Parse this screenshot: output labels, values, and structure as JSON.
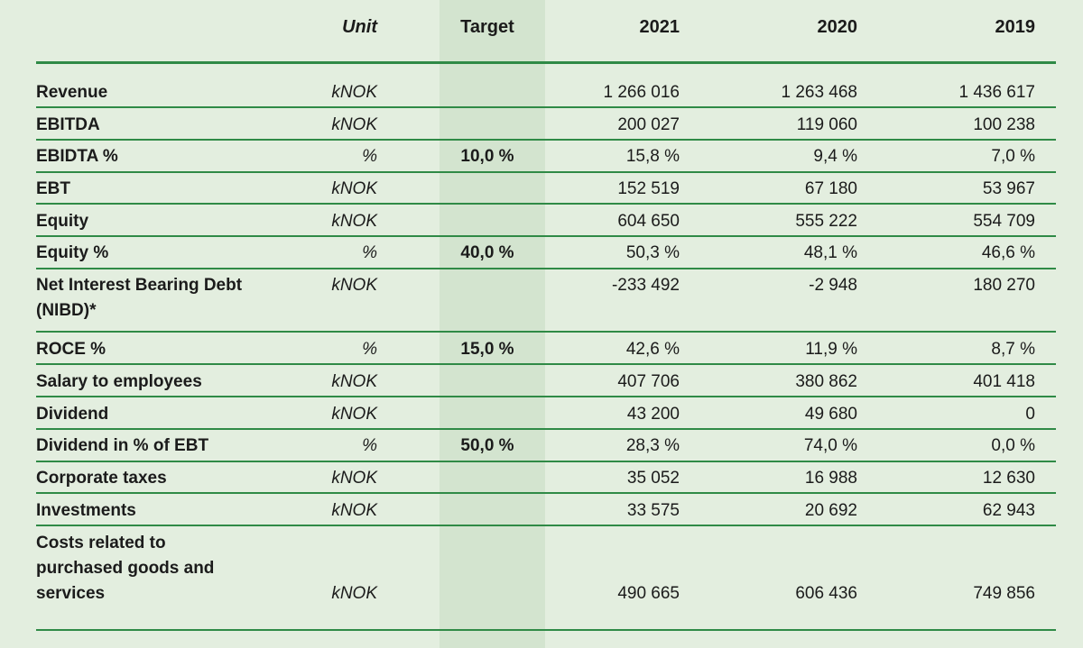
{
  "header": {
    "unit": "Unit",
    "target": "Target",
    "y2021": "2021",
    "y2020": "2020",
    "y2019": "2019"
  },
  "rows": [
    {
      "label": "Revenue",
      "unit": "kNOK",
      "target": "",
      "y2021": "1 266 016",
      "y2020": "1 263 468",
      "y2019": "1 436 617"
    },
    {
      "label": "EBITDA",
      "unit": "kNOK",
      "target": "",
      "y2021": "200 027",
      "y2020": "119 060",
      "y2019": "100 238"
    },
    {
      "label": "EBIDTA %",
      "unit": "%",
      "target": "10,0 %",
      "y2021": "15,8 %",
      "y2020": "9,4 %",
      "y2019": "7,0 %"
    },
    {
      "label": "EBT",
      "unit": "kNOK",
      "target": "",
      "y2021": "152 519",
      "y2020": "67 180",
      "y2019": "53 967"
    },
    {
      "label": "Equity",
      "unit": "kNOK",
      "target": "",
      "y2021": "604 650",
      "y2020": "555 222",
      "y2019": "554 709"
    },
    {
      "label": "Equity %",
      "unit": "%",
      "target": "40,0 %",
      "y2021": "50,3 %",
      "y2020": "48,1 %",
      "y2019": "46,6 %"
    },
    {
      "label": "Net Interest Bearing Debt (NIBD)*",
      "unit": "kNOK",
      "target": "",
      "y2021": "-233 492",
      "y2020": "-2 948",
      "y2019": "180 270"
    },
    {
      "label": "ROCE %",
      "unit": "%",
      "target": "15,0 %",
      "y2021": "42,6 %",
      "y2020": "11,9 %",
      "y2019": "8,7 %"
    },
    {
      "label": "Salary to employees",
      "unit": "kNOK",
      "target": "",
      "y2021": "407 706",
      "y2020": "380 862",
      "y2019": "401 418"
    },
    {
      "label": "Dividend",
      "unit": "kNOK",
      "target": "",
      "y2021": "43 200",
      "y2020": "49 680",
      "y2019": "0"
    },
    {
      "label": "Dividend in % of EBT",
      "unit": "%",
      "target": "50,0 %",
      "y2021": "28,3 %",
      "y2020": "74,0 %",
      "y2019": "0,0 %"
    },
    {
      "label": "Corporate taxes",
      "unit": "kNOK",
      "target": "",
      "y2021": "35 052",
      "y2020": "16 988",
      "y2019": "12 630"
    },
    {
      "label": "Investments",
      "unit": "kNOK",
      "target": "",
      "y2021": "33 575",
      "y2020": "20 692",
      "y2019": "62 943"
    },
    {
      "label": "Costs related to purchased goods and services",
      "unit": "kNOK",
      "target": "",
      "y2021": "490 665",
      "y2020": "606 436",
      "y2019": "749 856"
    }
  ],
  "colors": {
    "background": "#e3eedf",
    "target_column": "#d3e4cf",
    "rule": "#2f8a46"
  }
}
